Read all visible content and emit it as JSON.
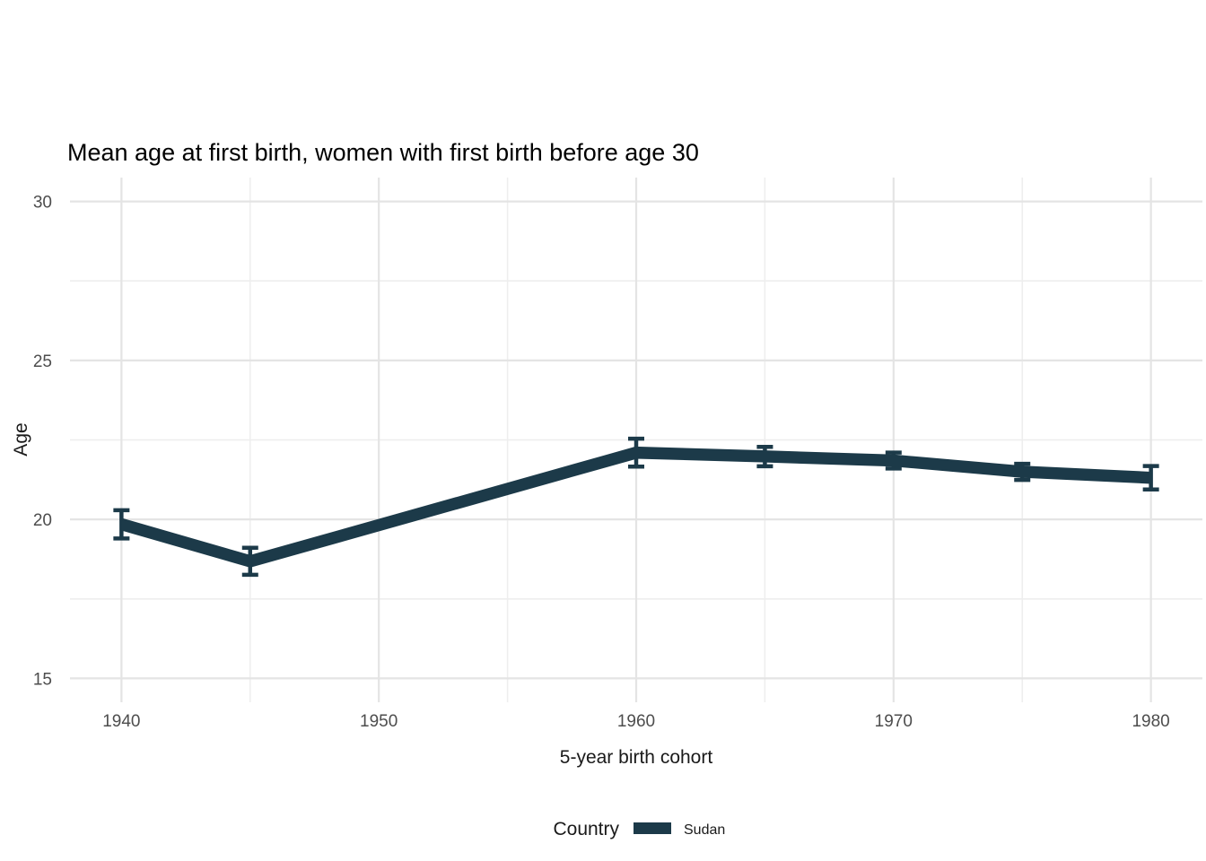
{
  "title": "Mean age at first birth, women with first birth before age 30",
  "colors": {
    "line": "#1c3a49",
    "grid_major": "#e4e4e4",
    "grid_minor": "#eeeeee",
    "tick_label": "#4d4d4d",
    "text": "#000000",
    "background": "#ffffff"
  },
  "chart_data": {
    "type": "line",
    "title": "Mean age at first birth, women with first birth before age 30",
    "xlabel": "5-year birth cohort",
    "ylabel": "Age",
    "x_ticks": [
      1940,
      1950,
      1960,
      1970,
      1980
    ],
    "y_ticks": [
      15,
      20,
      25,
      30
    ],
    "xlim": [
      1938,
      1982
    ],
    "ylim": [
      14.25,
      30.75
    ],
    "grid": "major and minor, light gray, no axis lines or tick marks (ggplot theme_minimal)",
    "legend": {
      "title": "Country",
      "position": "bottom",
      "entries": [
        {
          "label": "Sudan",
          "color": "#1c3a49"
        }
      ]
    },
    "series": [
      {
        "name": "Sudan",
        "color": "#1c3a49",
        "x": [
          1940,
          1945,
          1960,
          1965,
          1970,
          1975,
          1980
        ],
        "y": [
          19.85,
          18.68,
          22.1,
          21.98,
          21.85,
          21.5,
          21.31
        ],
        "ci_low": [
          19.4,
          18.26,
          21.66,
          21.67,
          21.6,
          21.24,
          20.94
        ],
        "ci_high": [
          20.29,
          19.11,
          22.54,
          22.28,
          22.1,
          21.75,
          21.68
        ],
        "note": "thick line with error bars; no observations at 1950 and 1955"
      }
    ]
  }
}
